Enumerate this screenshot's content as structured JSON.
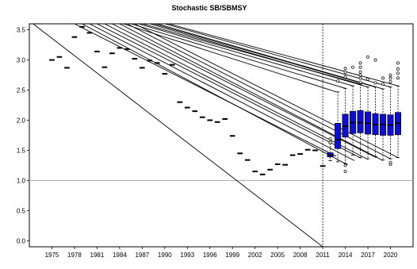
{
  "chart_data": {
    "type": "box",
    "title": "Stochastic SB/SBMSY",
    "xlabel": "",
    "ylabel": "",
    "xlim": [
      1972,
      2023
    ],
    "ylim": [
      -0.1,
      3.6
    ],
    "x_ticks": [
      1975,
      1978,
      1981,
      1984,
      1987,
      1990,
      1993,
      1996,
      1999,
      2002,
      2005,
      2008,
      2011,
      2014,
      2017,
      2020
    ],
    "y_ticks": [
      0.0,
      0.5,
      1.0,
      1.5,
      2.0,
      2.5,
      3.0,
      3.5
    ],
    "reference_line_y": 1.0,
    "reference_line_color": "#b0b0b0",
    "vertical_line_x": 2011,
    "box_color": "#1010cc",
    "historical_series": [
      {
        "x": 1975,
        "y": 3.0
      },
      {
        "x": 1976,
        "y": 3.05
      },
      {
        "x": 1977,
        "y": 2.87
      },
      {
        "x": 1978,
        "y": 3.38
      },
      {
        "x": 1979,
        "y": 3.55
      },
      {
        "x": 1980,
        "y": 3.45
      },
      {
        "x": 1981,
        "y": 3.14
      },
      {
        "x": 1982,
        "y": 2.88
      },
      {
        "x": 1983,
        "y": 3.11
      },
      {
        "x": 1984,
        "y": 3.2
      },
      {
        "x": 1985,
        "y": 3.18
      },
      {
        "x": 1986,
        "y": 3.02
      },
      {
        "x": 1987,
        "y": 2.87
      },
      {
        "x": 1988,
        "y": 2.99
      },
      {
        "x": 1989,
        "y": 2.95
      },
      {
        "x": 1990,
        "y": 2.77
      },
      {
        "x": 1991,
        "y": 2.92
      },
      {
        "x": 1992,
        "y": 2.3
      },
      {
        "x": 1993,
        "y": 2.21
      },
      {
        "x": 1994,
        "y": 2.15
      },
      {
        "x": 1995,
        "y": 2.05
      },
      {
        "x": 1996,
        "y": 2.0
      },
      {
        "x": 1997,
        "y": 1.97
      },
      {
        "x": 1998,
        "y": 2.02
      },
      {
        "x": 1999,
        "y": 1.74
      },
      {
        "x": 2000,
        "y": 1.45
      },
      {
        "x": 2001,
        "y": 1.34
      },
      {
        "x": 2002,
        "y": 1.15
      },
      {
        "x": 2003,
        "y": 1.1
      },
      {
        "x": 2004,
        "y": 1.18
      },
      {
        "x": 2005,
        "y": 1.27
      },
      {
        "x": 2006,
        "y": 1.26
      },
      {
        "x": 2007,
        "y": 1.42
      },
      {
        "x": 2008,
        "y": 1.44
      },
      {
        "x": 2009,
        "y": 1.51
      },
      {
        "x": 2010,
        "y": 1.5
      },
      {
        "x": 2011,
        "y": 1.24
      }
    ],
    "projection_boxes": [
      {
        "x": 2012,
        "whisker_low": 1.33,
        "q1": 1.39,
        "median": 1.42,
        "q3": 1.46,
        "whisker_high": 1.62,
        "outliers": [
          1.63,
          1.69
        ]
      },
      {
        "x": 2013,
        "whisker_low": 1.31,
        "q1": 1.53,
        "median": 1.68,
        "q3": 1.95,
        "whisker_high": 2.47,
        "outliers": [
          2.65
        ]
      },
      {
        "x": 2014,
        "whisker_low": 1.28,
        "q1": 1.72,
        "median": 1.9,
        "q3": 2.1,
        "whisker_high": 2.53,
        "outliers": [
          1.15,
          1.25,
          2.72,
          2.8,
          2.86
        ]
      },
      {
        "x": 2015,
        "whisker_low": 1.42,
        "q1": 1.78,
        "median": 1.96,
        "q3": 2.15,
        "whisker_high": 2.57,
        "outliers": [
          2.88
        ]
      },
      {
        "x": 2016,
        "whisker_low": 1.38,
        "q1": 1.79,
        "median": 1.96,
        "q3": 2.16,
        "whisker_high": 2.6,
        "outliers": [
          2.63,
          2.7,
          2.75,
          2.8,
          2.88,
          2.95
        ]
      },
      {
        "x": 2017,
        "whisker_low": 1.36,
        "q1": 1.77,
        "median": 1.95,
        "q3": 2.14,
        "whisker_high": 2.55,
        "outliers": [
          2.68,
          3.05
        ]
      },
      {
        "x": 2018,
        "whisker_low": 1.4,
        "q1": 1.76,
        "median": 1.93,
        "q3": 2.11,
        "whisker_high": 2.55,
        "outliers": [
          2.62,
          3.0
        ]
      },
      {
        "x": 2019,
        "whisker_low": 1.34,
        "q1": 1.75,
        "median": 1.93,
        "q3": 2.1,
        "whisker_high": 2.52,
        "outliers": [
          2.6,
          2.7
        ]
      },
      {
        "x": 2020,
        "whisker_low": 1.36,
        "q1": 1.75,
        "median": 1.92,
        "q3": 2.09,
        "whisker_high": 2.55,
        "outliers": [
          1.27,
          1.3,
          2.64,
          2.7,
          2.75
        ]
      },
      {
        "x": 2021,
        "whisker_low": 1.38,
        "q1": 1.76,
        "median": 1.95,
        "q3": 2.13,
        "whisker_high": 2.57,
        "outliers": [
          2.7,
          2.78,
          2.85,
          2.95
        ]
      }
    ],
    "diagonal_lines": [
      {
        "x1": 1972.5,
        "y1": 3.6,
        "x2": 2011.0,
        "y2": -0.1
      },
      {
        "x1": 1978.0,
        "y1": 3.6,
        "x2": 2012.8,
        "y2": 1.4
      },
      {
        "x1": 1979.0,
        "y1": 3.6,
        "x2": 2014.3,
        "y2": 1.26
      },
      {
        "x1": 1980.0,
        "y1": 3.6,
        "x2": 2015.2,
        "y2": 1.33
      },
      {
        "x1": 1981.0,
        "y1": 3.6,
        "x2": 2016.1,
        "y2": 1.37
      },
      {
        "x1": 1982.0,
        "y1": 3.6,
        "x2": 2017.0,
        "y2": 1.35
      },
      {
        "x1": 1983.0,
        "y1": 3.6,
        "x2": 2018.1,
        "y2": 1.38
      },
      {
        "x1": 1984.0,
        "y1": 3.6,
        "x2": 2019.0,
        "y2": 1.33
      },
      {
        "x1": 1985.0,
        "y1": 3.6,
        "x2": 2020.0,
        "y2": 1.36
      },
      {
        "x1": 1986.0,
        "y1": 3.6,
        "x2": 2021.0,
        "y2": 1.38
      },
      {
        "x1": 1984.5,
        "y1": 3.6,
        "x2": 2012.8,
        "y2": 2.47
      },
      {
        "x1": 1985.5,
        "y1": 3.6,
        "x2": 2014.0,
        "y2": 2.53
      },
      {
        "x1": 1986.5,
        "y1": 3.6,
        "x2": 2015.0,
        "y2": 2.57
      },
      {
        "x1": 1987.0,
        "y1": 3.6,
        "x2": 2016.0,
        "y2": 2.6
      },
      {
        "x1": 1988.0,
        "y1": 3.6,
        "x2": 2017.0,
        "y2": 2.55
      },
      {
        "x1": 1988.5,
        "y1": 3.6,
        "x2": 2018.0,
        "y2": 2.55
      },
      {
        "x1": 1989.0,
        "y1": 3.6,
        "x2": 2019.0,
        "y2": 2.52
      },
      {
        "x1": 1990.0,
        "y1": 3.6,
        "x2": 2020.0,
        "y2": 2.55
      },
      {
        "x1": 1990.5,
        "y1": 3.6,
        "x2": 2021.0,
        "y2": 2.57
      }
    ]
  }
}
